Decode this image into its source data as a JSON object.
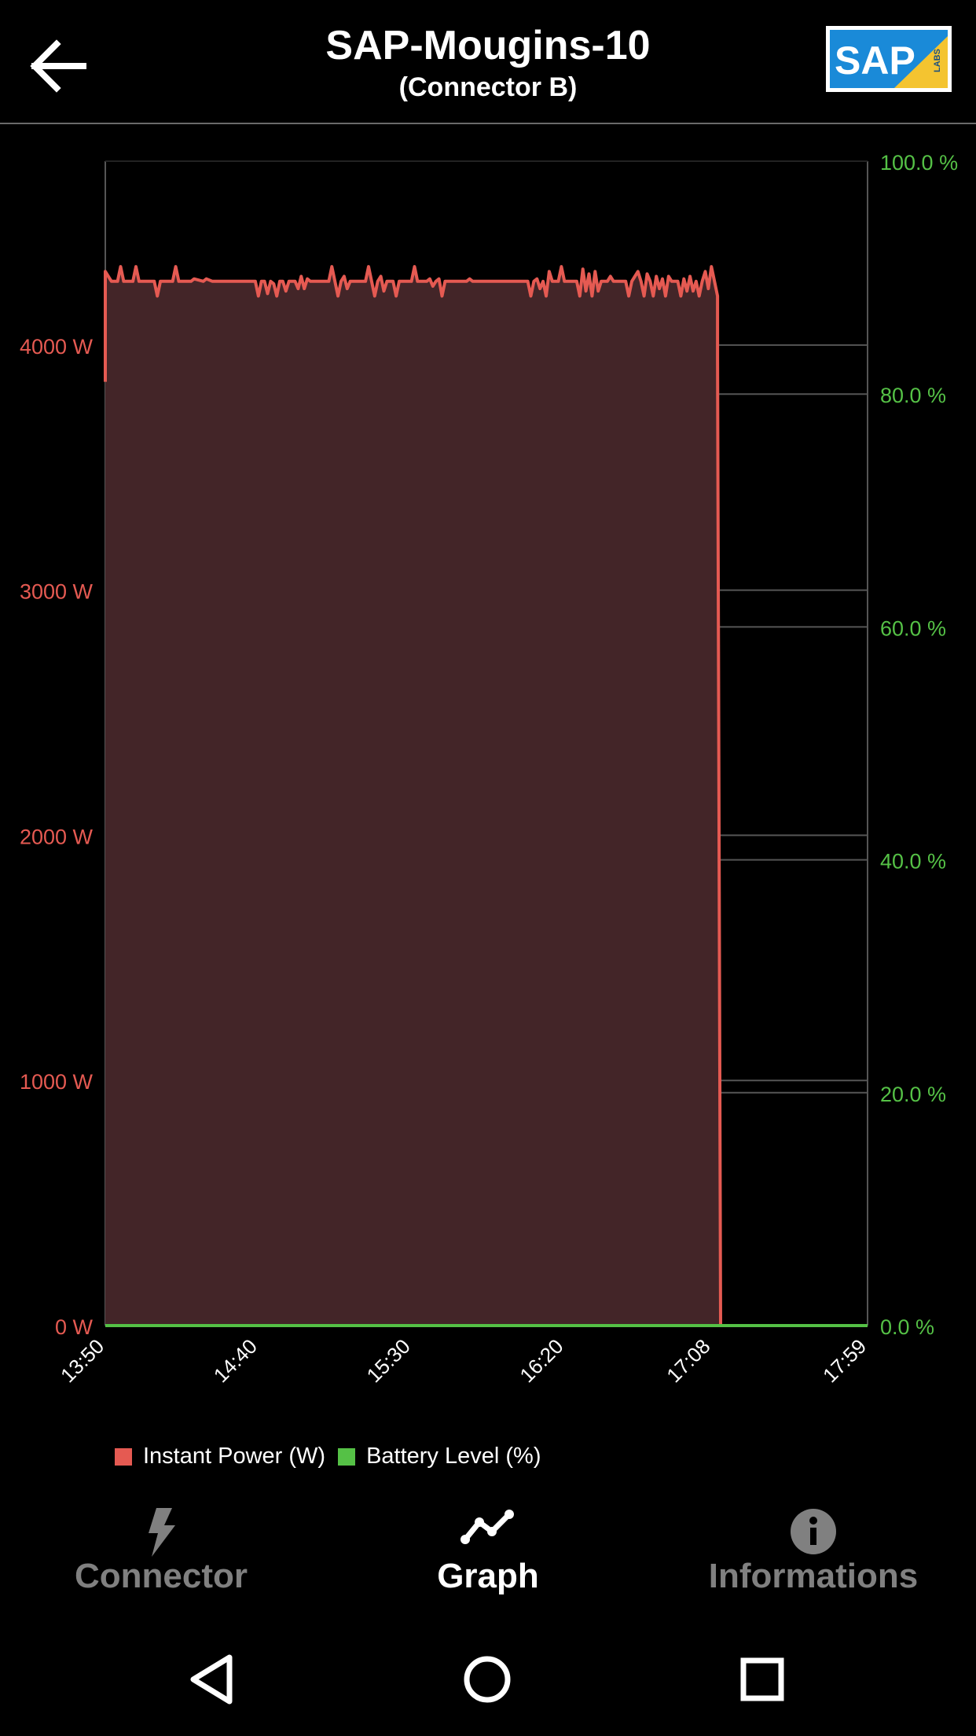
{
  "header": {
    "title": "SAP-Mougins-10",
    "subtitle": "(Connector B)",
    "back_icon": "arrow-left-icon",
    "logo_text": "SAP",
    "logo_badge": "LABS"
  },
  "colors": {
    "power": "#e55a52",
    "power_fill": "#432528",
    "battery": "#55c146",
    "grid": "#555555",
    "axis_text_left": "#e55a52",
    "axis_text_right": "#55c146"
  },
  "chart_data": {
    "type": "area",
    "x_ticks": [
      "13:50",
      "14:40",
      "15:30",
      "16:20",
      "17:08",
      "17:59"
    ],
    "y_left_ticks": [
      "0 W",
      "1000 W",
      "2000 W",
      "3000 W",
      "4000 W"
    ],
    "y_right_ticks": [
      "0.0 %",
      "20.0 %",
      "40.0 %",
      "60.0 %",
      "80.0 %",
      "100.0 %"
    ],
    "y_left_range": [
      0,
      4750
    ],
    "y_right_range": [
      0,
      100
    ],
    "x_range": [
      "13:50",
      "17:59"
    ],
    "grid": true,
    "series": [
      {
        "name": "Instant Power (W)",
        "axis": "left",
        "points": [
          [
            "13:50",
            3850
          ],
          [
            "13:50",
            4300
          ],
          [
            "13:52",
            4260
          ],
          [
            "13:54",
            4260
          ],
          [
            "13:55",
            4320
          ],
          [
            "13:56",
            4260
          ],
          [
            "13:59",
            4260
          ],
          [
            "14:00",
            4320
          ],
          [
            "14:01",
            4260
          ],
          [
            "14:06",
            4260
          ],
          [
            "14:07",
            4200
          ],
          [
            "14:08",
            4260
          ],
          [
            "14:12",
            4260
          ],
          [
            "14:13",
            4320
          ],
          [
            "14:14",
            4260
          ],
          [
            "14:18",
            4260
          ],
          [
            "14:19",
            4270
          ],
          [
            "14:22",
            4260
          ],
          [
            "14:23",
            4270
          ],
          [
            "14:25",
            4260
          ],
          [
            "14:39",
            4260
          ],
          [
            "14:40",
            4200
          ],
          [
            "14:41",
            4260
          ],
          [
            "14:42",
            4260
          ],
          [
            "14:43",
            4210
          ],
          [
            "14:44",
            4260
          ],
          [
            "14:45",
            4250
          ],
          [
            "14:46",
            4200
          ],
          [
            "14:47",
            4260
          ],
          [
            "14:48",
            4260
          ],
          [
            "14:49",
            4220
          ],
          [
            "14:50",
            4260
          ],
          [
            "14:52",
            4260
          ],
          [
            "14:53",
            4230
          ],
          [
            "14:54",
            4280
          ],
          [
            "14:55",
            4230
          ],
          [
            "14:56",
            4270
          ],
          [
            "14:57",
            4260
          ],
          [
            "15:03",
            4260
          ],
          [
            "15:04",
            4320
          ],
          [
            "15:05",
            4260
          ],
          [
            "15:06",
            4200
          ],
          [
            "15:07",
            4260
          ],
          [
            "15:08",
            4280
          ],
          [
            "15:09",
            4230
          ],
          [
            "15:10",
            4260
          ],
          [
            "15:15",
            4260
          ],
          [
            "15:16",
            4320
          ],
          [
            "15:17",
            4260
          ],
          [
            "15:18",
            4200
          ],
          [
            "15:19",
            4260
          ],
          [
            "15:20",
            4280
          ],
          [
            "15:21",
            4220
          ],
          [
            "15:22",
            4260
          ],
          [
            "15:24",
            4260
          ],
          [
            "15:25",
            4200
          ],
          [
            "15:26",
            4260
          ],
          [
            "15:30",
            4260
          ],
          [
            "15:31",
            4320
          ],
          [
            "15:32",
            4260
          ],
          [
            "15:35",
            4260
          ],
          [
            "15:36",
            4270
          ],
          [
            "15:37",
            4240
          ],
          [
            "15:38",
            4260
          ],
          [
            "15:39",
            4270
          ],
          [
            "15:40",
            4200
          ],
          [
            "15:41",
            4260
          ],
          [
            "15:48",
            4260
          ],
          [
            "15:49",
            4270
          ],
          [
            "15:50",
            4260
          ],
          [
            "16:08",
            4260
          ],
          [
            "16:09",
            4200
          ],
          [
            "16:10",
            4260
          ],
          [
            "16:11",
            4270
          ],
          [
            "16:12",
            4230
          ],
          [
            "16:13",
            4260
          ],
          [
            "16:14",
            4200
          ],
          [
            "16:15",
            4300
          ],
          [
            "16:16",
            4260
          ],
          [
            "16:18",
            4260
          ],
          [
            "16:19",
            4320
          ],
          [
            "16:20",
            4260
          ],
          [
            "16:24",
            4260
          ],
          [
            "16:25",
            4200
          ],
          [
            "16:26",
            4310
          ],
          [
            "16:27",
            4220
          ],
          [
            "16:28",
            4290
          ],
          [
            "16:29",
            4200
          ],
          [
            "16:30",
            4300
          ],
          [
            "16:31",
            4220
          ],
          [
            "16:32",
            4260
          ],
          [
            "16:34",
            4260
          ],
          [
            "16:35",
            4280
          ],
          [
            "16:36",
            4260
          ],
          [
            "16:40",
            4260
          ],
          [
            "16:41",
            4200
          ],
          [
            "16:42",
            4260
          ],
          [
            "16:44",
            4300
          ],
          [
            "16:45",
            4260
          ],
          [
            "16:46",
            4200
          ],
          [
            "16:47",
            4290
          ],
          [
            "16:48",
            4260
          ],
          [
            "16:49",
            4200
          ],
          [
            "16:50",
            4280
          ],
          [
            "16:51",
            4230
          ],
          [
            "16:52",
            4270
          ],
          [
            "16:53",
            4200
          ],
          [
            "16:54",
            4280
          ],
          [
            "16:55",
            4260
          ],
          [
            "16:57",
            4260
          ],
          [
            "16:58",
            4200
          ],
          [
            "16:59",
            4270
          ],
          [
            "17:00",
            4220
          ],
          [
            "17:01",
            4280
          ],
          [
            "17:02",
            4220
          ],
          [
            "17:03",
            4260
          ],
          [
            "17:04",
            4200
          ],
          [
            "17:05",
            4260
          ],
          [
            "17:06",
            4300
          ],
          [
            "17:07",
            4230
          ],
          [
            "17:08",
            4320
          ],
          [
            "17:09",
            4260
          ],
          [
            "17:10",
            4200
          ],
          [
            "17:10",
            3950
          ],
          [
            "17:11",
            0
          ],
          [
            "17:59",
            0
          ]
        ]
      },
      {
        "name": "Battery Level (%)",
        "axis": "right",
        "points": [
          [
            "13:50",
            0
          ],
          [
            "17:59",
            0
          ]
        ]
      }
    ]
  },
  "legend": {
    "power_label": "Instant Power (W)",
    "battery_label": "Battery Level (%)"
  },
  "bottom_nav": {
    "tabs": [
      {
        "label": "Connector",
        "icon": "lightning-bolt-icon",
        "active": false
      },
      {
        "label": "Graph",
        "icon": "line-graph-icon",
        "active": true
      },
      {
        "label": "Informations",
        "icon": "info-icon",
        "active": false
      }
    ]
  },
  "system_nav": {
    "back": "back-triangle-icon",
    "home": "home-circle-icon",
    "recents": "recents-square-icon"
  }
}
